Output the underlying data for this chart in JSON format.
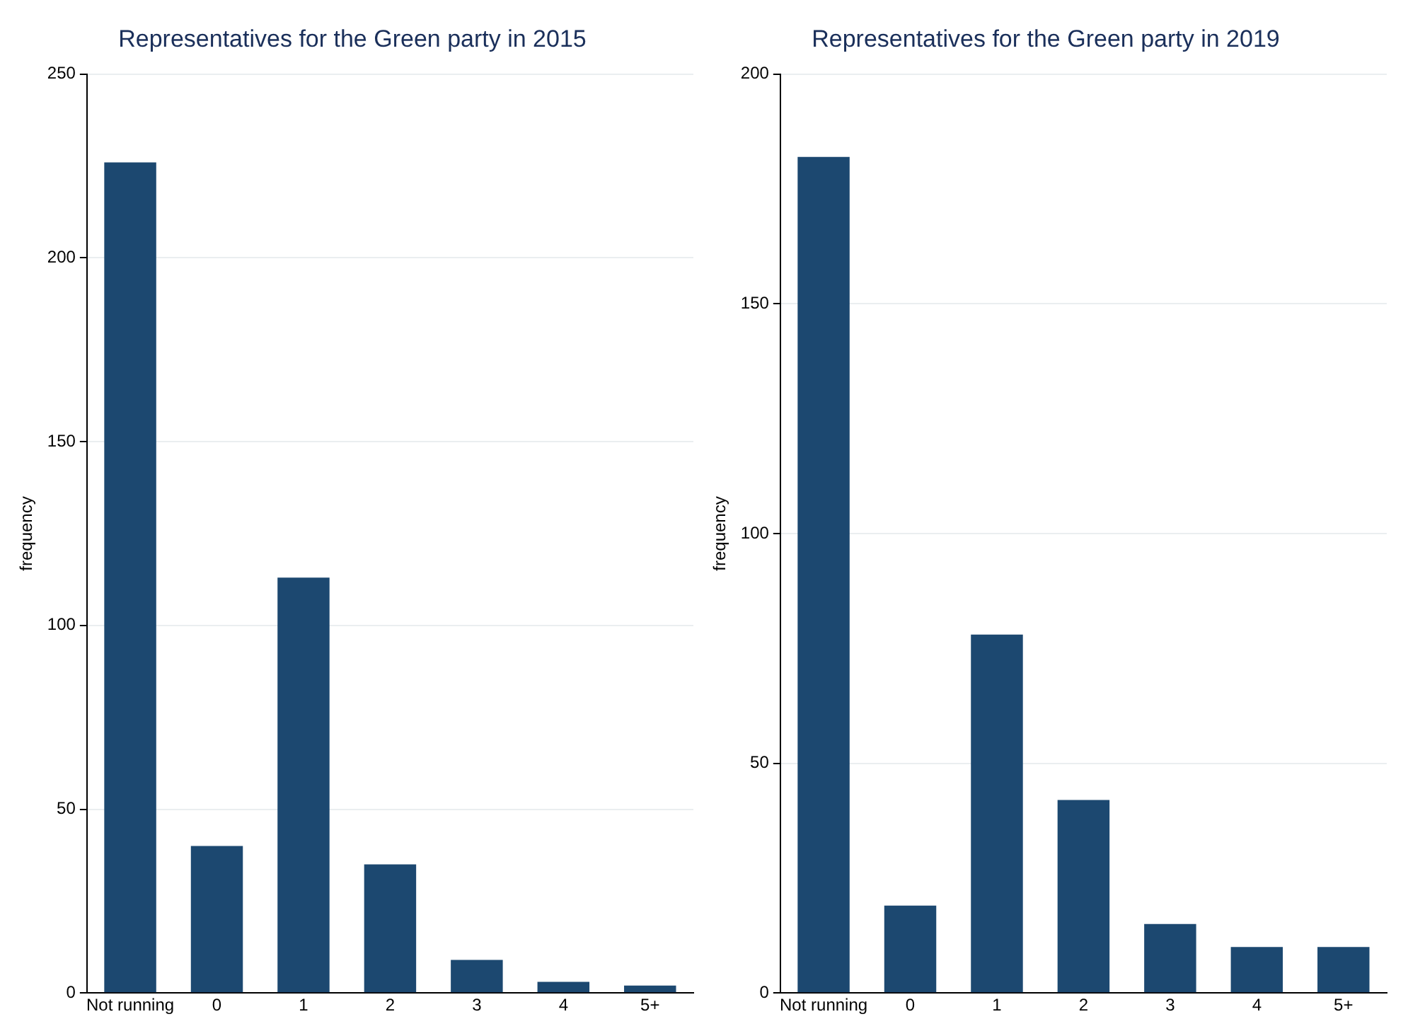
{
  "chart_data": [
    {
      "type": "bar",
      "title": "Representatives for the Green party in 2015",
      "ylabel": "frequency",
      "categories": [
        "Not running",
        "0",
        "1",
        "2",
        "3",
        "4",
        "5+"
      ],
      "values": [
        226,
        40,
        113,
        35,
        9,
        3,
        2
      ],
      "color": "#1c4870",
      "ylim": [
        0,
        250
      ],
      "yticks": [
        0,
        50,
        100,
        150,
        200,
        250
      ],
      "grid": "y"
    },
    {
      "type": "bar",
      "title": "Representatives for the Green party in 2019",
      "ylabel": "frequency",
      "categories": [
        "Not running",
        "0",
        "1",
        "2",
        "3",
        "4",
        "5+"
      ],
      "values": [
        182,
        19,
        78,
        42,
        15,
        10,
        10
      ],
      "color": "#1c4870",
      "ylim": [
        0,
        200
      ],
      "yticks": [
        0,
        50,
        100,
        150,
        200
      ],
      "grid": "y"
    }
  ]
}
